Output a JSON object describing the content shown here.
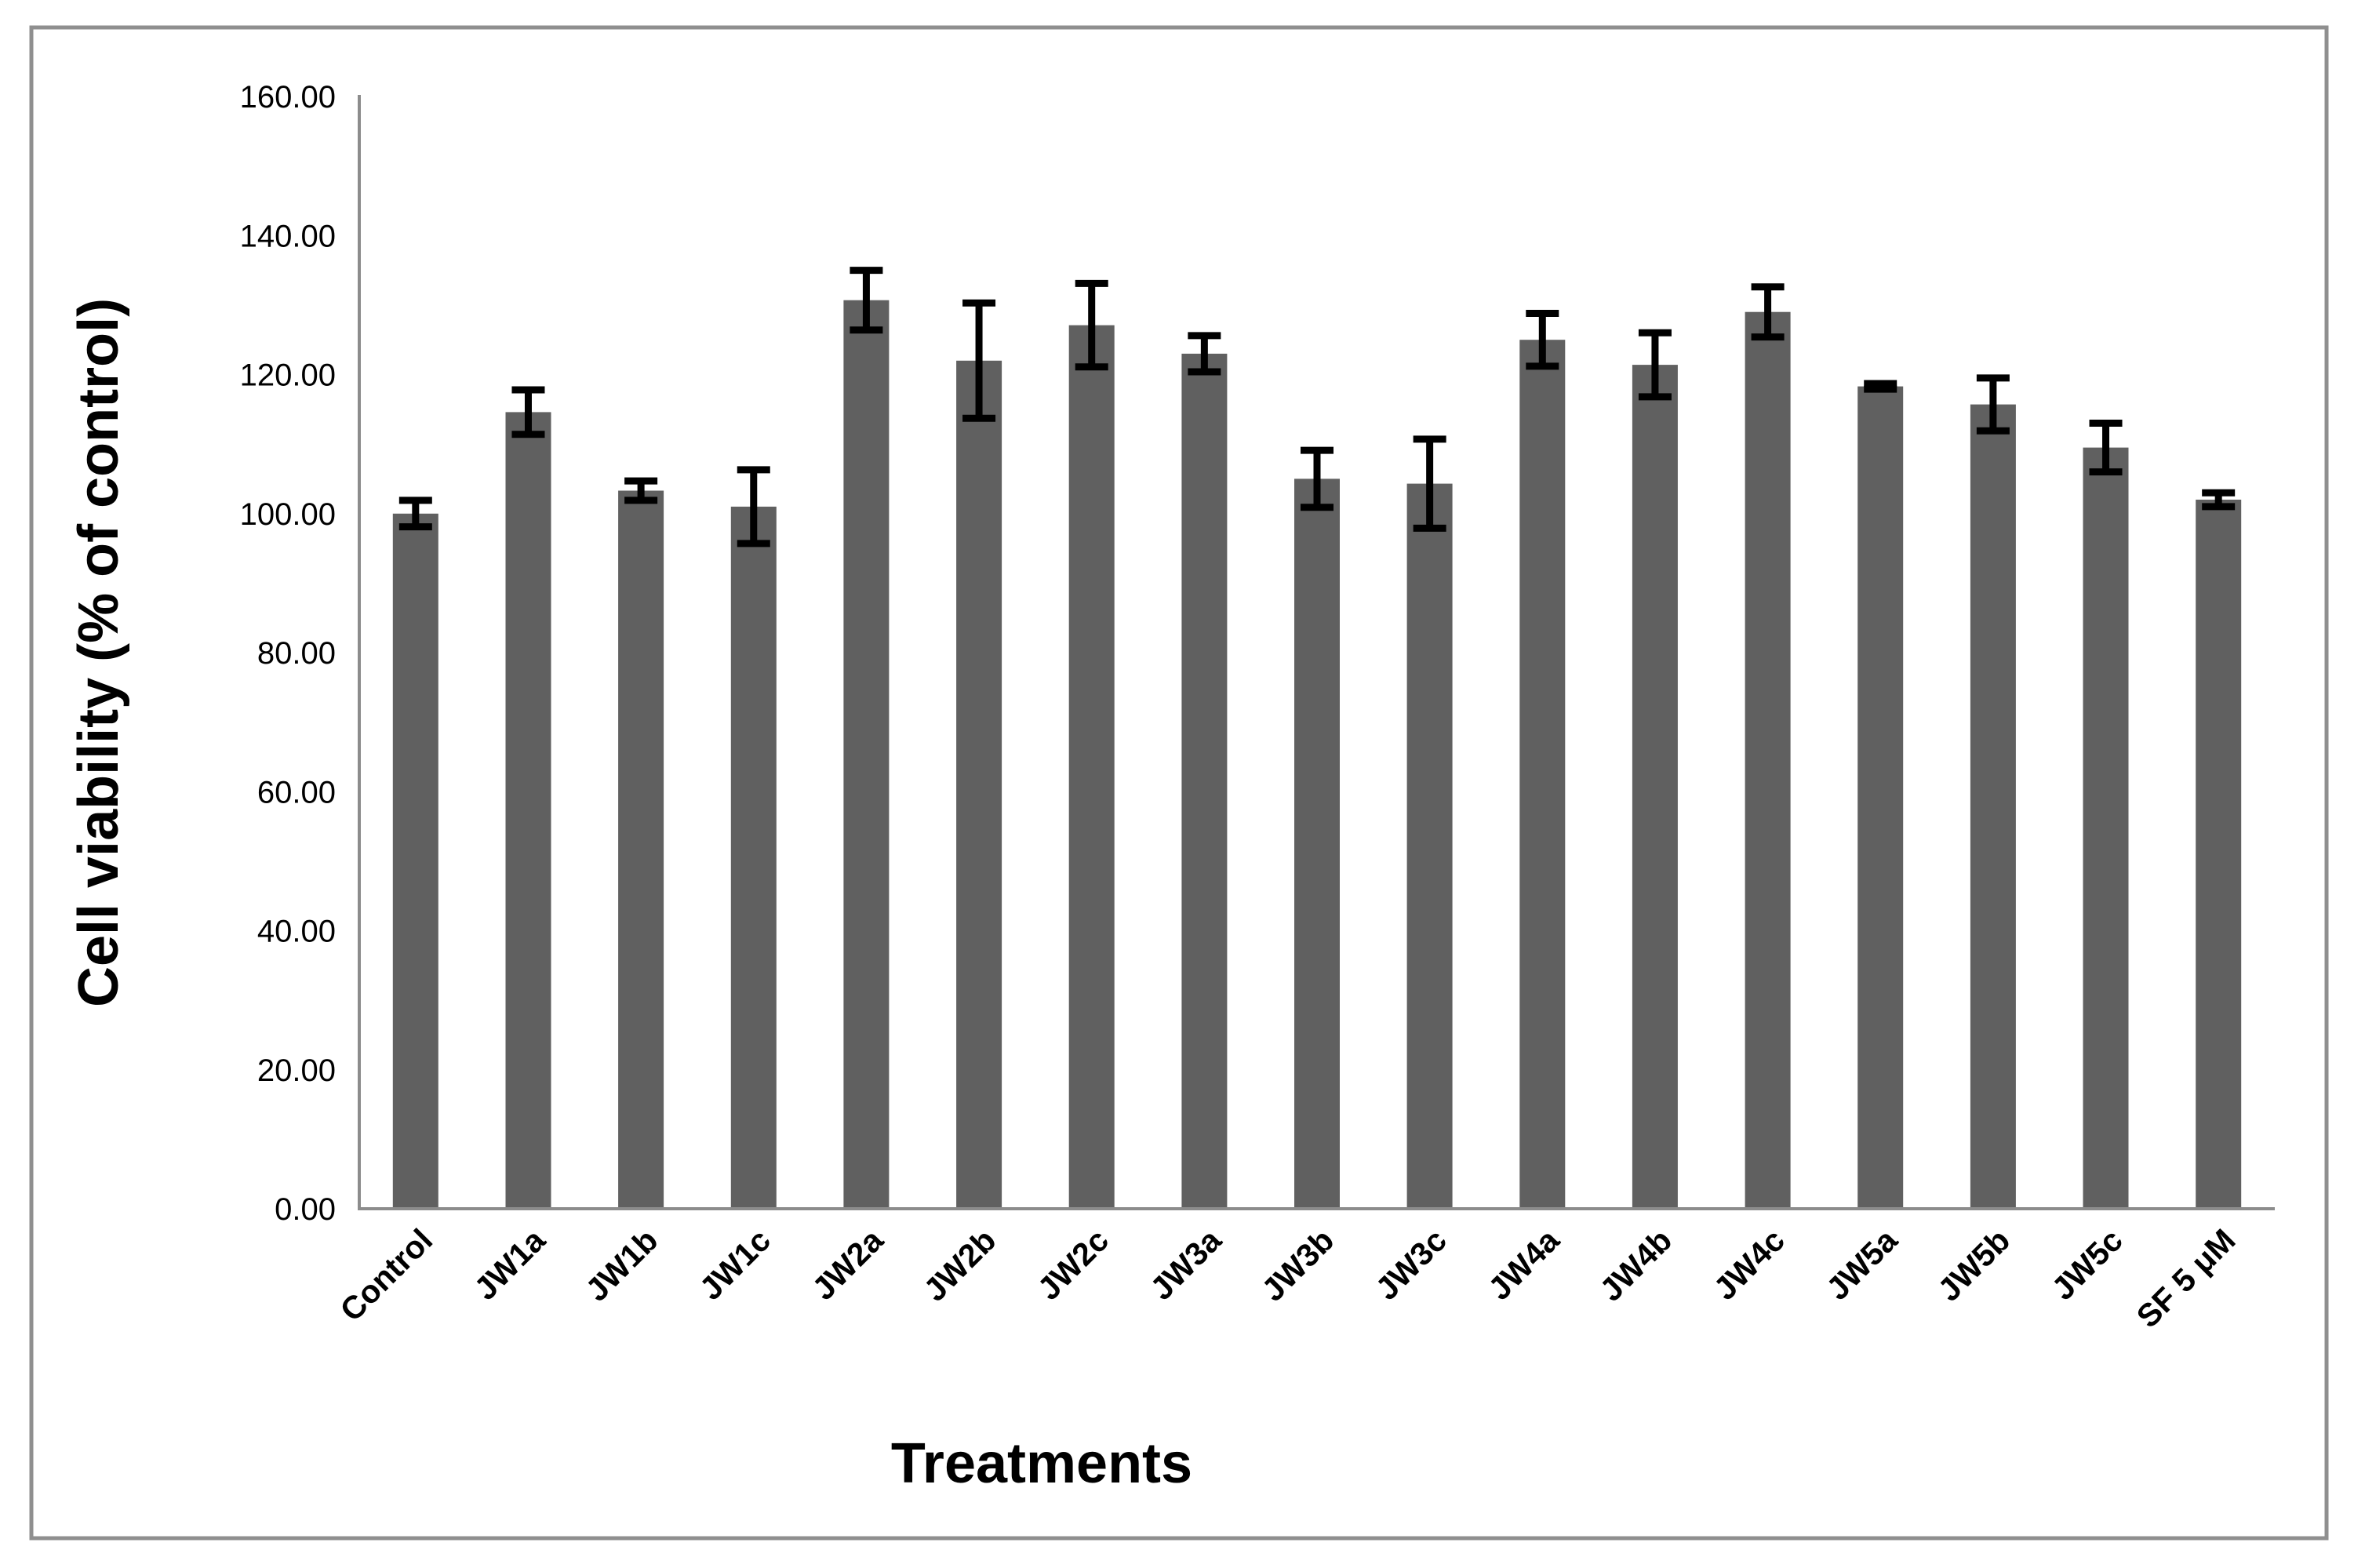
{
  "chart_data": {
    "type": "bar",
    "title": "",
    "xlabel": "Treatments",
    "ylabel": "Cell viability (% of control)",
    "categories": [
      "Control",
      "JW1a",
      "JW1b",
      "JW1c",
      "JW2a",
      "JW2b",
      "JW2c",
      "JW3a",
      "JW3b",
      "JW3c",
      "JW4a",
      "JW4b",
      "JW4c",
      "JW5a",
      "JW5b",
      "JW5c",
      "SF 5 μM"
    ],
    "values": [
      100.0,
      114.6,
      103.3,
      101.0,
      130.7,
      122.0,
      127.1,
      123.0,
      105.0,
      104.3,
      125.0,
      121.4,
      129.0,
      118.3,
      115.7,
      109.5,
      102.0
    ],
    "errors": [
      1.9,
      3.2,
      1.4,
      5.3,
      4.3,
      8.3,
      6.0,
      2.6,
      4.1,
      6.4,
      3.8,
      4.6,
      3.6,
      0.4,
      3.8,
      3.5,
      1.0
    ],
    "ylim": [
      0,
      160
    ],
    "ytick_step": 20,
    "y_tick_labels": [
      "0.00",
      "20.00",
      "40.00",
      "60.00",
      "80.00",
      "100.00",
      "120.00",
      "140.00",
      "160.00"
    ],
    "grid": false,
    "legend": null,
    "bar_color": "#606060",
    "error_bar_color": "#000000",
    "axis_line_color": "#8c8c8c",
    "frame_color": "#8f8f8f",
    "background_color": "#ffffff"
  }
}
